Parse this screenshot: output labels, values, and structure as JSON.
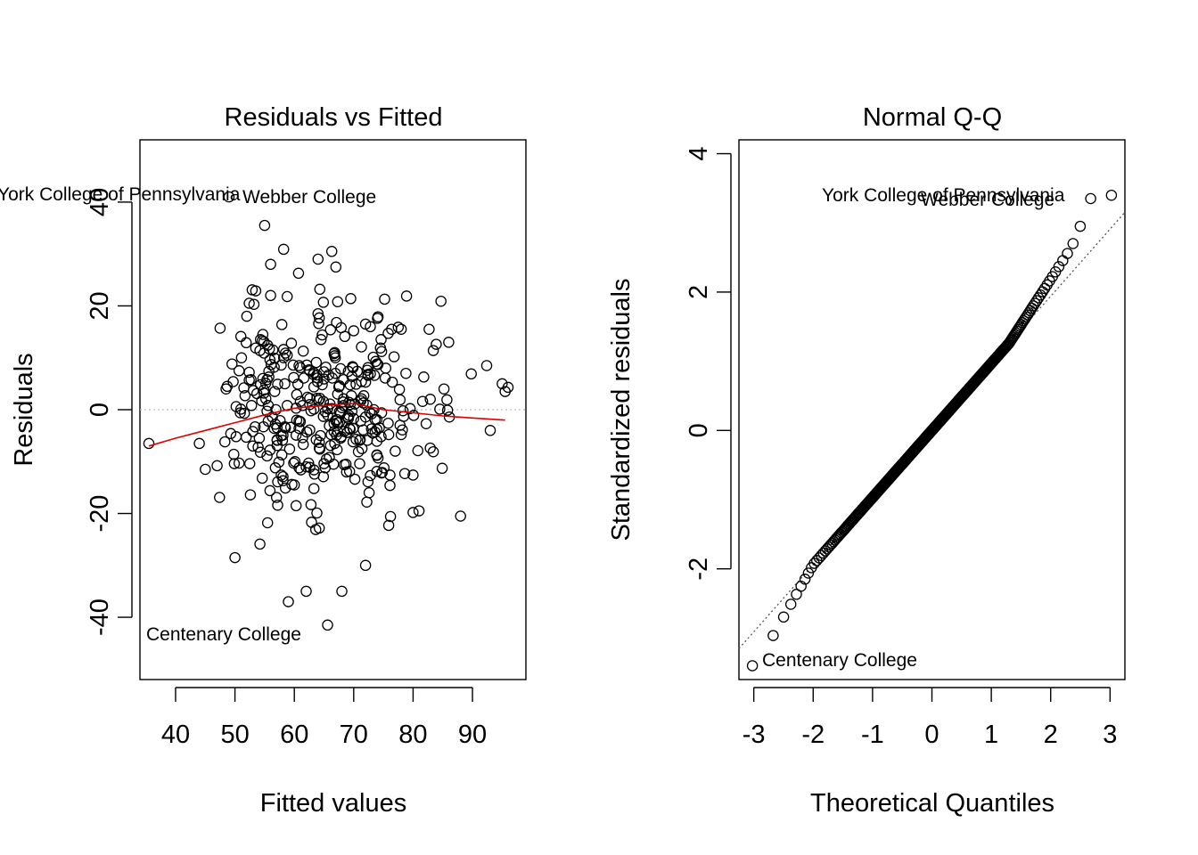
{
  "chart_data": [
    {
      "type": "scatter",
      "title": "Residuals vs Fitted",
      "xlabel": "Fitted values",
      "ylabel": "Residuals",
      "xlim": [
        34,
        99
      ],
      "ylim": [
        -52,
        52
      ],
      "xticks": [
        40,
        50,
        60,
        70,
        80,
        90
      ],
      "xtick_labels": [
        "40",
        "50",
        "60",
        "70",
        "80",
        "90"
      ],
      "yticks": [
        -40,
        -20,
        0,
        20,
        40
      ],
      "ytick_labels": [
        "-40",
        "-20",
        "0",
        "20",
        "40"
      ],
      "reference_line": {
        "y": 0,
        "style": "dotted",
        "color": "#bbbbbb"
      },
      "smoother": {
        "color": "#dd0000",
        "x": [
          35.5,
          40,
          45,
          50,
          55,
          60,
          65,
          70,
          75,
          80,
          85,
          90,
          95.5
        ],
        "y": [
          -7,
          -5.5,
          -4,
          -2.5,
          -1,
          0.3,
          0.8,
          1.2,
          0,
          -0.6,
          -1.2,
          -1.6,
          -2
        ]
      },
      "x": [],
      "y": [],
      "annotations": [
        {
          "text": "York College of Pennsylvania",
          "x": 49,
          "y": 41
        },
        {
          "text": "Webber College",
          "x": 49,
          "y": 41
        },
        {
          "text": "Centenary College",
          "x": 65.6,
          "y": -41.5
        }
      ]
    },
    {
      "type": "scatter",
      "title": "Normal Q-Q",
      "xlabel": "Theoretical Quantiles",
      "ylabel": "Standardized residuals",
      "xlim": [
        -3.25,
        3.25
      ],
      "ylim": [
        -3.6,
        4.2
      ],
      "xticks": [
        -3,
        -2,
        -1,
        0,
        1,
        2,
        3
      ],
      "xtick_labels": [
        "-3",
        "-2",
        "-1",
        "0",
        "1",
        "2",
        "3"
      ],
      "yticks": [
        -2,
        0,
        2,
        4
      ],
      "ytick_labels": [
        "-2",
        "0",
        "2",
        "4"
      ],
      "reference_line": {
        "slope": 0.97,
        "intercept": 0,
        "style": "dotted",
        "color": "#555555"
      },
      "x": [],
      "y": [],
      "annotations": [
        {
          "text": "York College of Pennsylvania",
          "x": 3.0,
          "y": 3.4
        },
        {
          "text": "Webber College",
          "x": 2.65,
          "y": 3.35
        },
        {
          "text": "Centenary College",
          "x": -3.0,
          "y": -3.4
        }
      ]
    }
  ]
}
